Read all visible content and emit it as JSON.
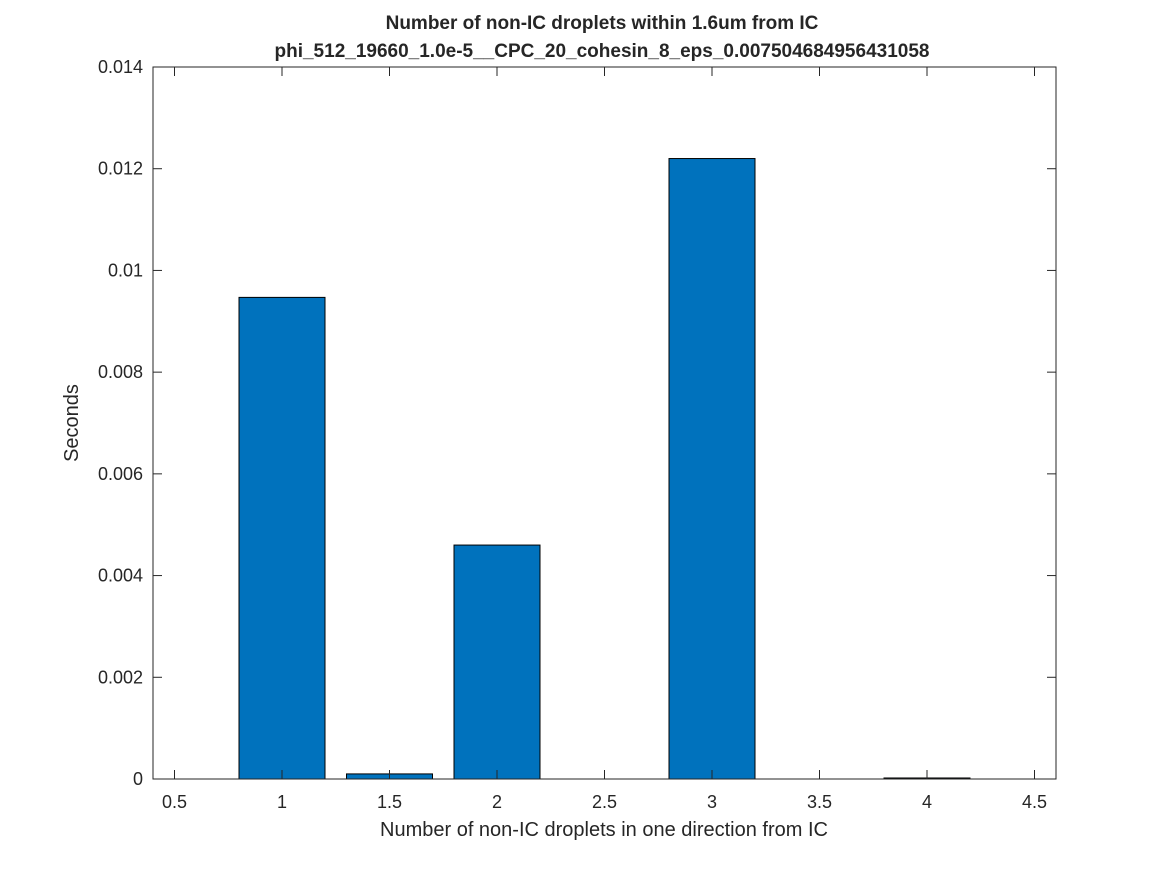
{
  "chart_data": {
    "type": "bar",
    "title": [
      "Number of non-IC droplets within 1.6um from IC",
      "phi_512_19660_1.0e-5__CPC_20_cohesin_8_eps_0.007504684956431058"
    ],
    "xlabel": "Number of non-IC droplets in one direction from IC",
    "ylabel": "Seconds",
    "xlim": [
      0.4,
      4.6
    ],
    "ylim": [
      0,
      0.014
    ],
    "xticks": [
      0.5,
      1,
      1.5,
      2,
      2.5,
      3,
      3.5,
      4,
      4.5
    ],
    "xtick_labels": [
      "0.5",
      "1",
      "1.5",
      "2",
      "2.5",
      "3",
      "3.5",
      "4",
      "4.5"
    ],
    "yticks": [
      0,
      0.002,
      0.004,
      0.006,
      0.008,
      0.01,
      0.012,
      0.014
    ],
    "ytick_labels": [
      "0",
      "0.002",
      "0.004",
      "0.006",
      "0.008",
      "0.01",
      "0.012",
      "0.014"
    ],
    "bar_width": 0.4,
    "x": [
      1,
      1.5,
      2,
      2.5,
      3,
      3.5,
      4
    ],
    "values": [
      0.00947,
      0.0001,
      0.0046,
      0,
      0.0122,
      0,
      2e-05
    ],
    "bar_color": "#0072BD",
    "bar_edge_color": "#000000",
    "axis_color": "#262626",
    "grid": false
  }
}
